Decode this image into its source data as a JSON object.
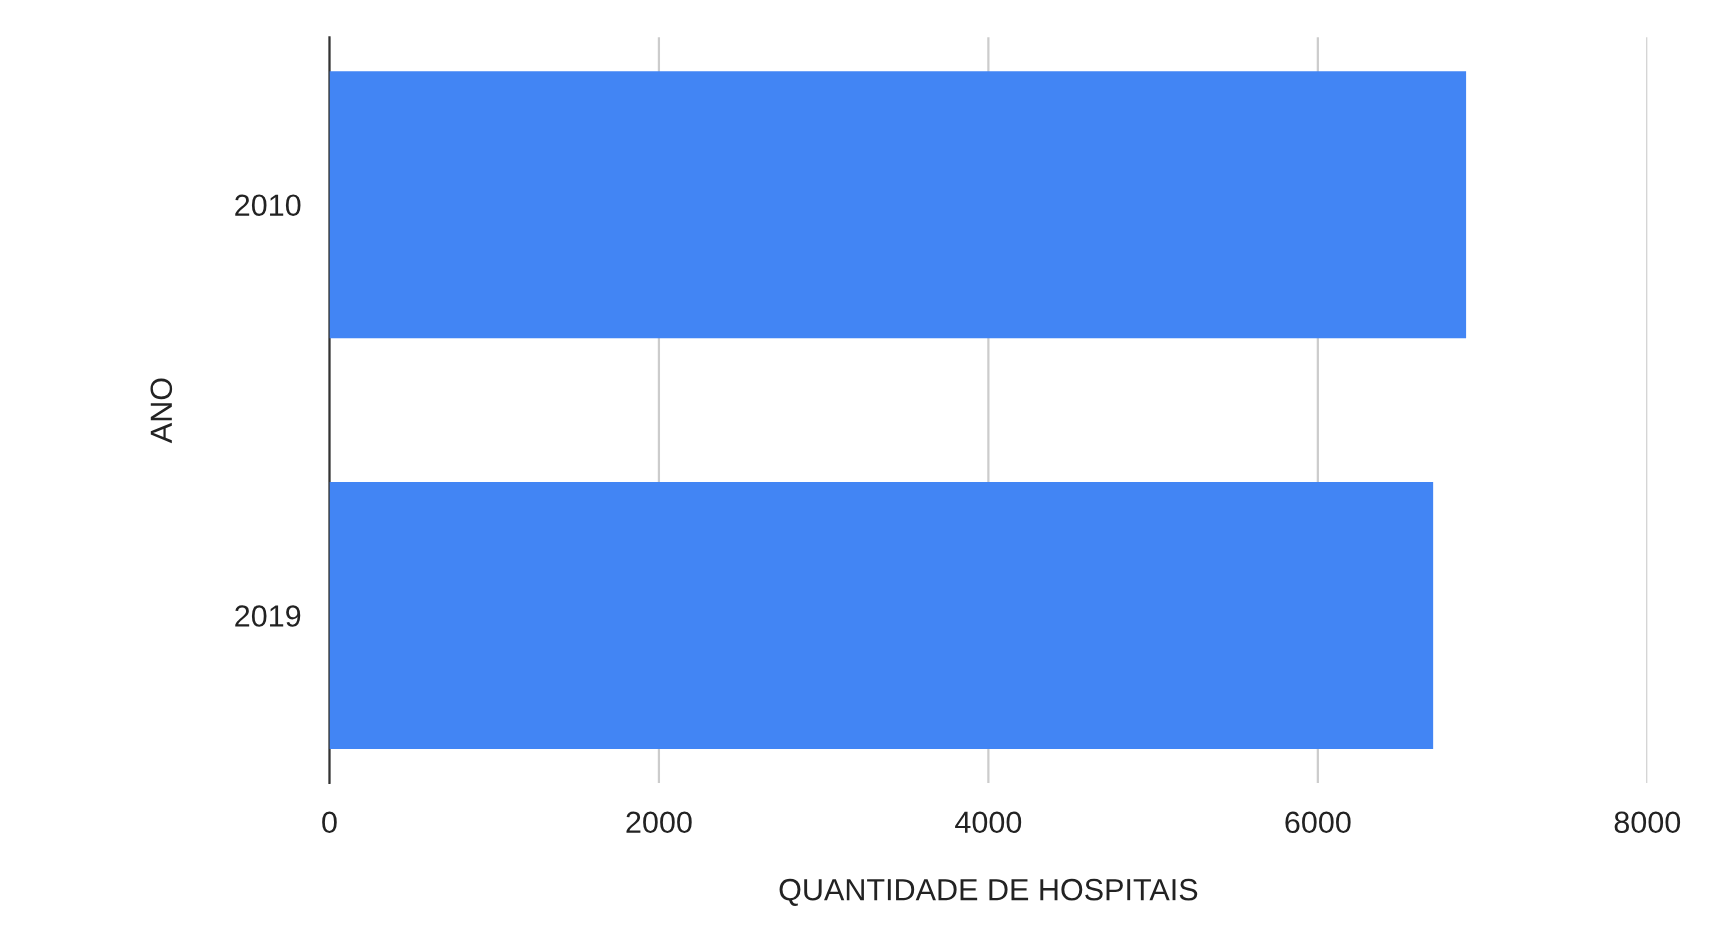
{
  "chart_data": {
    "type": "bar",
    "orientation": "horizontal",
    "categories": [
      "2010",
      "2019"
    ],
    "values": [
      6900,
      6700
    ],
    "color": "#4285f4",
    "xlabel": "QUANTIDADE DE HOSPITAIS",
    "ylabel": "ANO",
    "xlim": [
      0,
      8000
    ],
    "xticks": [
      0,
      2000,
      4000,
      6000,
      8000
    ],
    "grid": "x",
    "legend": false
  }
}
